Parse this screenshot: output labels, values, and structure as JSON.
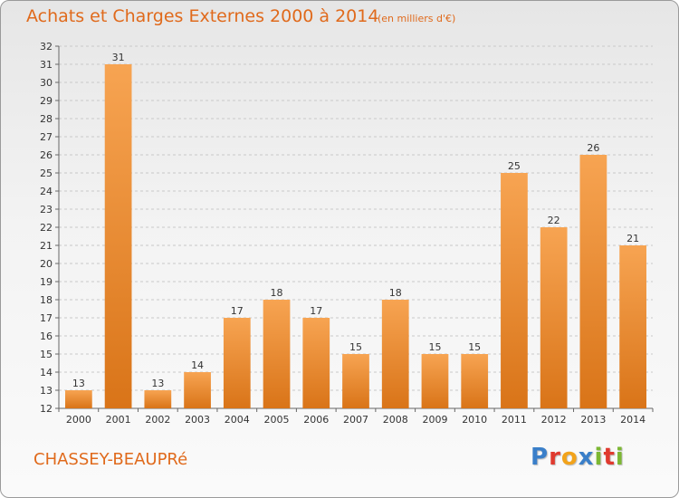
{
  "title": "Achats et Charges Externes 2000 à 2014",
  "subtitle": "(en milliers d'€)",
  "commune": "CHASSEY-BEAUPRé",
  "brand": {
    "letters": [
      "P",
      "r",
      "o",
      "x",
      "i",
      "t",
      "i"
    ],
    "colors": [
      "#3a7fc9",
      "#e03a2f",
      "#f2a31b",
      "#3a7fc9",
      "#7cb733",
      "#e03a2f",
      "#7cb733"
    ]
  },
  "colors": {
    "bar_top": "#f7a452",
    "bar_bottom": "#d97418",
    "grid": "#c9c9c9",
    "title": "#e06a1c"
  },
  "chart_data": {
    "type": "bar",
    "categories": [
      "2000",
      "2001",
      "2002",
      "2003",
      "2004",
      "2005",
      "2006",
      "2007",
      "2008",
      "2009",
      "2010",
      "2011",
      "2012",
      "2013",
      "2014"
    ],
    "values": [
      13,
      31,
      13,
      14,
      17,
      18,
      17,
      15,
      18,
      15,
      15,
      25,
      22,
      26,
      21
    ],
    "title": "Achats et Charges Externes 2000 à 2014",
    "xlabel": "",
    "ylabel": "",
    "ylim": [
      12,
      32
    ],
    "yticks": [
      12,
      13,
      14,
      15,
      16,
      17,
      18,
      19,
      20,
      21,
      22,
      23,
      24,
      25,
      26,
      27,
      28,
      29,
      30,
      31,
      32
    ],
    "grid": true,
    "data_labels": true
  }
}
